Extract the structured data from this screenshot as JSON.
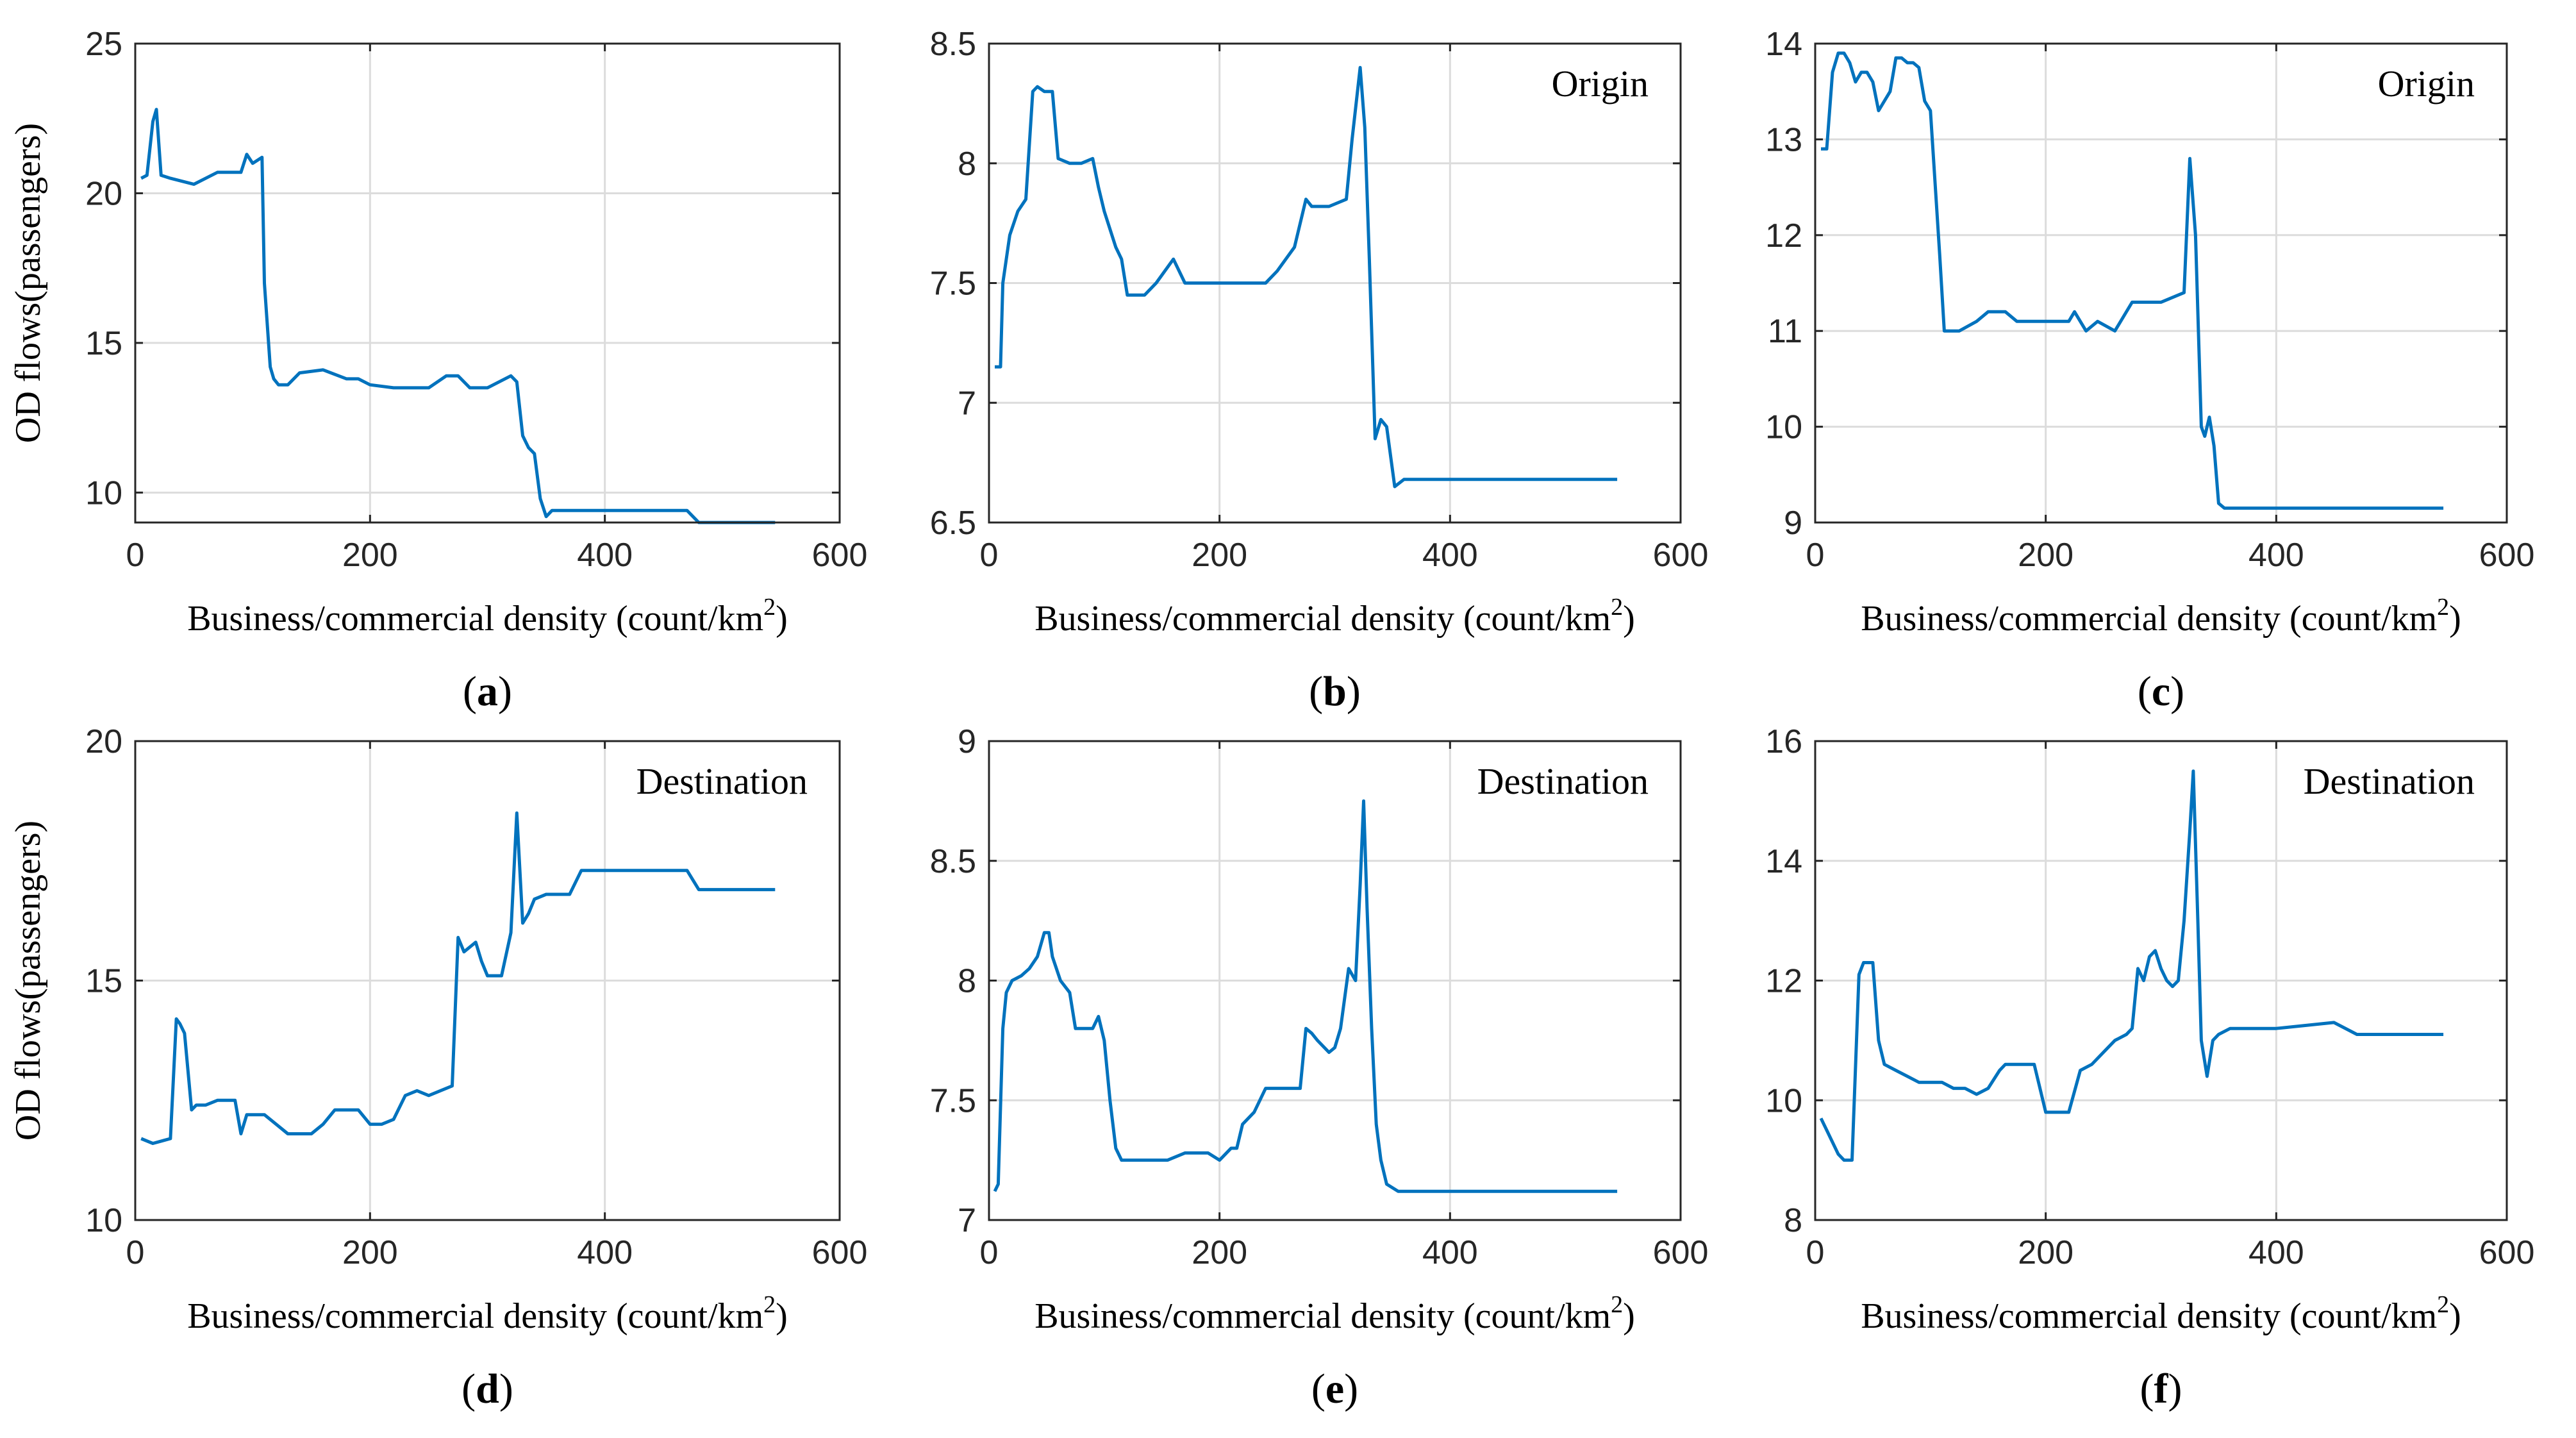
{
  "colors": {
    "line": "#0072BD",
    "axes": "#262626",
    "grid": "#dcdcdc"
  },
  "chart_data": [
    {
      "id": "a",
      "type": "line",
      "panel_label": "a",
      "title": "",
      "annotation": "",
      "xlabel": "Business/commercial density (count/km",
      "xlabel_sup": "2",
      "xlabel_close": ")",
      "ylabel": "OD flows(passengers)",
      "xlim": [
        0,
        600
      ],
      "ylim": [
        9,
        25
      ],
      "xticks": [
        0,
        200,
        400,
        600
      ],
      "yticks": [
        10,
        15,
        20,
        25
      ],
      "x": [
        5,
        10,
        15,
        18,
        22,
        30,
        50,
        70,
        90,
        95,
        100,
        108,
        110,
        115,
        118,
        122,
        130,
        140,
        160,
        180,
        190,
        200,
        220,
        250,
        265,
        275,
        285,
        300,
        320,
        325,
        330,
        335,
        340,
        345,
        350,
        355,
        470,
        480,
        545
      ],
      "y": [
        20.5,
        20.6,
        22.4,
        22.8,
        20.6,
        20.5,
        20.3,
        20.7,
        20.7,
        21.3,
        21.0,
        21.2,
        17.0,
        14.2,
        13.8,
        13.6,
        13.6,
        14.0,
        14.1,
        13.8,
        13.8,
        13.6,
        13.5,
        13.5,
        13.9,
        13.9,
        13.5,
        13.5,
        13.9,
        13.7,
        11.9,
        11.5,
        11.3,
        9.8,
        9.2,
        9.4,
        9.4,
        9.0,
        9.0
      ]
    },
    {
      "id": "b",
      "type": "line",
      "panel_label": "b",
      "title": "",
      "annotation": "Origin",
      "xlabel": "Business/commercial density (count/km",
      "xlabel_sup": "2",
      "xlabel_close": ")",
      "ylabel": "",
      "xlim": [
        0,
        600
      ],
      "ylim": [
        6.5,
        8.5
      ],
      "xticks": [
        0,
        200,
        400,
        600
      ],
      "yticks": [
        6.5,
        7,
        7.5,
        8,
        8.5
      ],
      "x": [
        5,
        10,
        12,
        18,
        25,
        32,
        38,
        42,
        48,
        55,
        60,
        70,
        80,
        90,
        95,
        100,
        110,
        115,
        120,
        125,
        135,
        145,
        160,
        170,
        180,
        200,
        220,
        240,
        250,
        265,
        275,
        280,
        295,
        310,
        315,
        322,
        326,
        330,
        335,
        340,
        345,
        352,
        360,
        380,
        545
      ],
      "y": [
        7.15,
        7.15,
        7.5,
        7.7,
        7.8,
        7.85,
        8.3,
        8.32,
        8.3,
        8.3,
        8.02,
        8.0,
        8.0,
        8.02,
        7.9,
        7.8,
        7.65,
        7.6,
        7.45,
        7.45,
        7.45,
        7.5,
        7.6,
        7.5,
        7.5,
        7.5,
        7.5,
        7.5,
        7.55,
        7.65,
        7.85,
        7.82,
        7.82,
        7.85,
        8.1,
        8.4,
        8.15,
        7.6,
        6.85,
        6.93,
        6.9,
        6.65,
        6.68,
        6.68,
        6.68
      ]
    },
    {
      "id": "c",
      "type": "line",
      "panel_label": "c",
      "title": "",
      "annotation": "Origin",
      "xlabel": "Business/commercial density (count/km",
      "xlabel_sup": "2",
      "xlabel_close": ")",
      "ylabel": "",
      "xlim": [
        0,
        600
      ],
      "ylim": [
        9,
        14
      ],
      "xticks": [
        0,
        200,
        400,
        600
      ],
      "yticks": [
        9,
        10,
        11,
        12,
        13,
        14
      ],
      "x": [
        5,
        10,
        15,
        20,
        25,
        30,
        35,
        40,
        45,
        50,
        55,
        60,
        65,
        70,
        75,
        80,
        85,
        90,
        95,
        100,
        108,
        112,
        118,
        125,
        140,
        150,
        165,
        175,
        185,
        200,
        220,
        225,
        235,
        245,
        260,
        275,
        300,
        320,
        325,
        330,
        335,
        338,
        342,
        346,
        350,
        355,
        545
      ],
      "y": [
        12.9,
        12.9,
        13.7,
        13.9,
        13.9,
        13.8,
        13.6,
        13.7,
        13.7,
        13.6,
        13.3,
        13.4,
        13.5,
        13.85,
        13.85,
        13.8,
        13.8,
        13.75,
        13.4,
        13.3,
        11.8,
        11.0,
        11.0,
        11.0,
        11.1,
        11.2,
        11.2,
        11.1,
        11.1,
        11.1,
        11.1,
        11.2,
        11.0,
        11.1,
        11.0,
        11.3,
        11.3,
        11.4,
        12.8,
        12.0,
        10.0,
        9.9,
        10.1,
        9.8,
        9.2,
        9.15,
        9.15
      ]
    },
    {
      "id": "d",
      "type": "line",
      "panel_label": "d",
      "title": "",
      "annotation": "Destination",
      "xlabel": "Business/commercial density (count/km",
      "xlabel_sup": "2",
      "xlabel_close": ")",
      "ylabel": "OD flows(passengers)",
      "xlim": [
        0,
        600
      ],
      "ylim": [
        10,
        20
      ],
      "xticks": [
        0,
        200,
        400,
        600
      ],
      "yticks": [
        10,
        15,
        20
      ],
      "x": [
        5,
        15,
        30,
        35,
        38,
        42,
        48,
        52,
        55,
        60,
        70,
        85,
        90,
        95,
        100,
        110,
        120,
        130,
        140,
        150,
        160,
        170,
        180,
        190,
        200,
        210,
        220,
        230,
        240,
        250,
        260,
        270,
        275,
        280,
        290,
        295,
        300,
        312,
        320,
        325,
        330,
        335,
        340,
        350,
        360,
        370,
        380,
        400,
        450,
        470,
        480,
        545
      ],
      "y": [
        11.7,
        11.6,
        11.7,
        14.2,
        14.1,
        13.9,
        12.3,
        12.4,
        12.4,
        12.4,
        12.5,
        12.5,
        11.8,
        12.2,
        12.2,
        12.2,
        12.0,
        11.8,
        11.8,
        11.8,
        12.0,
        12.3,
        12.3,
        12.3,
        12.0,
        12.0,
        12.1,
        12.6,
        12.7,
        12.6,
        12.7,
        12.8,
        15.9,
        15.6,
        15.8,
        15.4,
        15.1,
        15.1,
        16.0,
        18.5,
        16.2,
        16.4,
        16.7,
        16.8,
        16.8,
        16.8,
        17.3,
        17.3,
        17.3,
        17.3,
        16.9,
        16.9
      ]
    },
    {
      "id": "e",
      "type": "line",
      "panel_label": "e",
      "title": "",
      "annotation": "Destination",
      "xlabel": "Business/commercial density (count/km",
      "xlabel_sup": "2",
      "xlabel_close": ")",
      "ylabel": "",
      "xlim": [
        0,
        600
      ],
      "ylim": [
        7,
        9
      ],
      "xticks": [
        0,
        200,
        400,
        600
      ],
      "yticks": [
        7,
        7.5,
        8,
        8.5,
        9
      ],
      "x": [
        5,
        8,
        12,
        15,
        20,
        28,
        35,
        42,
        48,
        52,
        55,
        62,
        70,
        75,
        80,
        90,
        95,
        100,
        105,
        110,
        115,
        125,
        140,
        155,
        170,
        180,
        190,
        200,
        210,
        215,
        220,
        230,
        240,
        250,
        260,
        270,
        275,
        280,
        285,
        295,
        300,
        305,
        312,
        318,
        322,
        325,
        328,
        332,
        336,
        340,
        345,
        355,
        545
      ],
      "y": [
        7.12,
        7.15,
        7.8,
        7.95,
        8.0,
        8.02,
        8.05,
        8.1,
        8.2,
        8.2,
        8.1,
        8.0,
        7.95,
        7.8,
        7.8,
        7.8,
        7.85,
        7.75,
        7.5,
        7.3,
        7.25,
        7.25,
        7.25,
        7.25,
        7.28,
        7.28,
        7.28,
        7.25,
        7.3,
        7.3,
        7.4,
        7.45,
        7.55,
        7.55,
        7.55,
        7.55,
        7.8,
        7.78,
        7.75,
        7.7,
        7.72,
        7.8,
        8.05,
        8.0,
        8.4,
        8.75,
        8.3,
        7.8,
        7.4,
        7.25,
        7.15,
        7.12,
        7.12
      ]
    },
    {
      "id": "f",
      "type": "line",
      "panel_label": "f",
      "title": "",
      "annotation": "Destination",
      "xlabel": "Business/commercial density (count/km",
      "xlabel_sup": "2",
      "xlabel_close": ")",
      "ylabel": "",
      "xlim": [
        0,
        600
      ],
      "ylim": [
        8,
        16
      ],
      "xticks": [
        0,
        200,
        400,
        600
      ],
      "yticks": [
        8,
        10,
        12,
        14,
        16
      ],
      "x": [
        5,
        10,
        15,
        20,
        25,
        32,
        38,
        42,
        45,
        50,
        55,
        60,
        70,
        80,
        90,
        100,
        110,
        120,
        130,
        140,
        150,
        160,
        165,
        170,
        180,
        190,
        200,
        210,
        220,
        230,
        240,
        250,
        260,
        270,
        275,
        280,
        285,
        290,
        295,
        300,
        305,
        310,
        315,
        320,
        325,
        328,
        332,
        335,
        340,
        345,
        350,
        360,
        380,
        400,
        450,
        470,
        545
      ],
      "y": [
        9.7,
        9.5,
        9.3,
        9.1,
        9.0,
        9.0,
        12.1,
        12.3,
        12.3,
        12.3,
        11.0,
        10.6,
        10.5,
        10.4,
        10.3,
        10.3,
        10.3,
        10.2,
        10.2,
        10.1,
        10.2,
        10.5,
        10.6,
        10.6,
        10.6,
        10.6,
        9.8,
        9.8,
        9.8,
        10.5,
        10.6,
        10.8,
        11.0,
        11.1,
        11.2,
        12.2,
        12.0,
        12.4,
        12.5,
        12.2,
        12.0,
        11.9,
        12.0,
        13.0,
        14.5,
        15.5,
        13.0,
        11.0,
        10.4,
        11.0,
        11.1,
        11.2,
        11.2,
        11.2,
        11.3,
        11.1,
        11.1
      ]
    }
  ]
}
